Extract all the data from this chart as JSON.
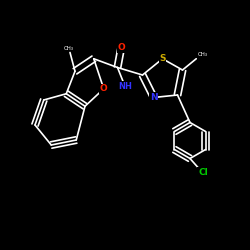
{
  "background_color": "#000000",
  "bond_color": "#ffffff",
  "atom_colors": {
    "O": "#ff2200",
    "S": "#ccaa00",
    "N": "#3333ff",
    "Cl": "#00cc00",
    "C": "#ffffff"
  },
  "figsize": [
    2.5,
    2.5
  ],
  "dpi": 100,
  "xlim": [
    0,
    10
  ],
  "ylim": [
    0,
    10
  ]
}
